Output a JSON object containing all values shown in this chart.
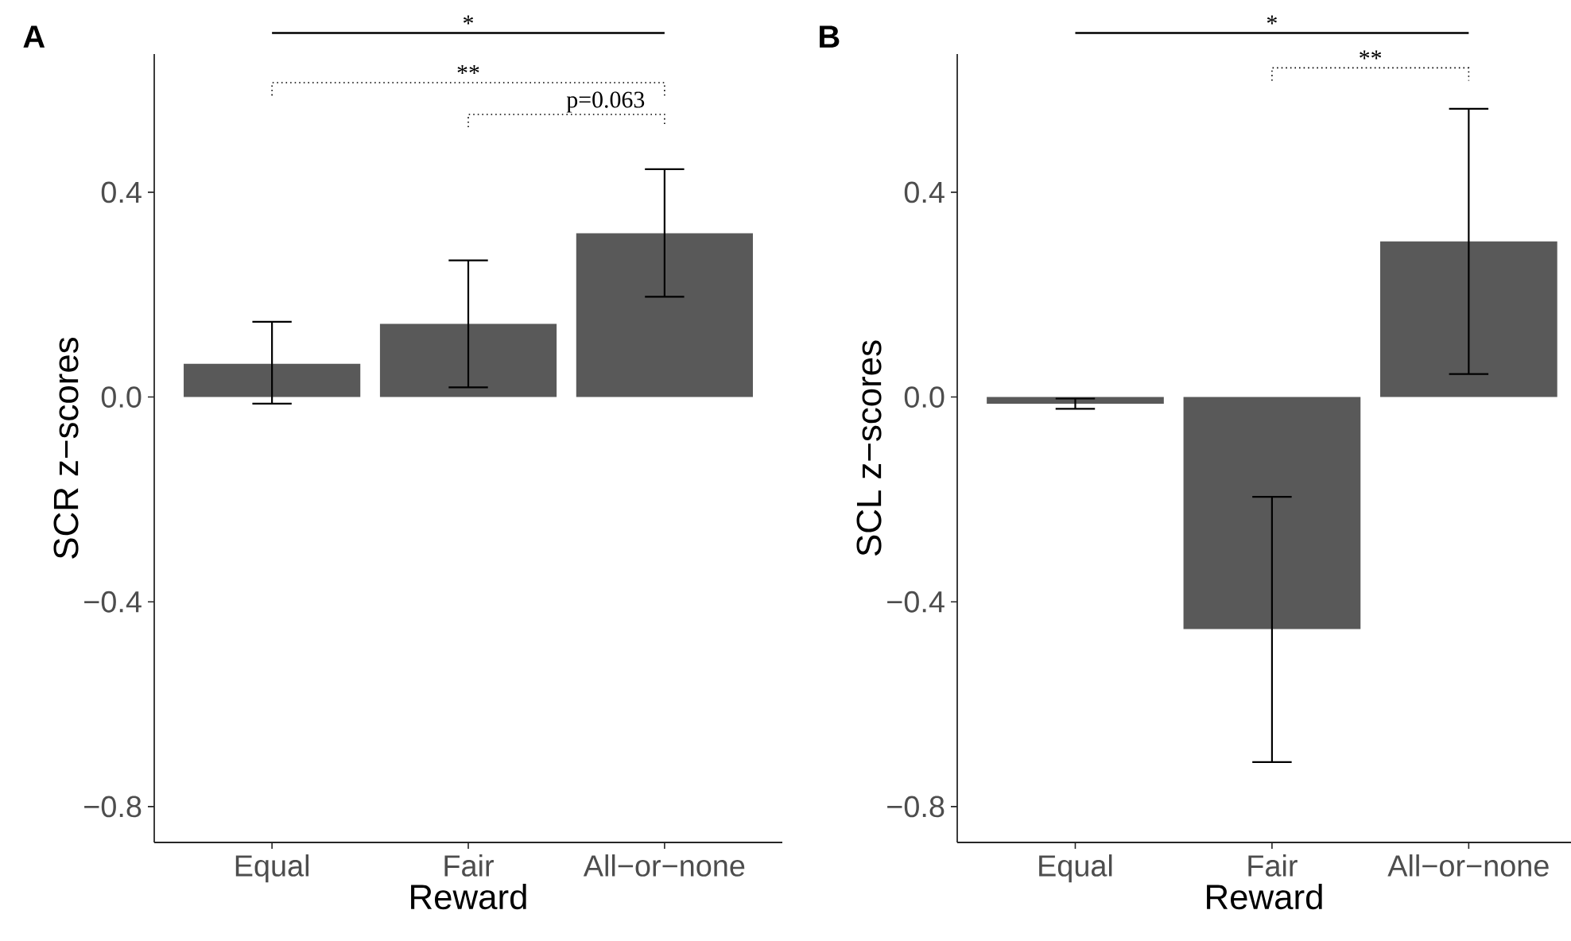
{
  "chart_data": [
    {
      "type": "bar",
      "title": "A",
      "categories": [
        "Equal",
        "Fair",
        "All−or−none"
      ],
      "values": [
        0.065,
        0.143,
        0.32
      ],
      "errors": [
        [
          -0.013,
          0.147
        ],
        [
          0.019,
          0.267
        ],
        [
          0.196,
          0.445
        ]
      ],
      "color": "#595959",
      "xlabel": "Reward",
      "ylabel": "SCR z−scores",
      "ylim": [
        -0.87,
        0.67
      ],
      "yticks": [
        {
          "value": -0.8,
          "label": "−0.8"
        },
        {
          "value": -0.4,
          "label": "−0.4"
        },
        {
          "value": 0.0,
          "label": "0.0"
        },
        {
          "value": 0.4,
          "label": "0.4"
        }
      ],
      "annotations": [
        "*",
        "**",
        "p=0.063"
      ]
    },
    {
      "type": "bar",
      "title": "B",
      "categories": [
        "Equal",
        "Fair",
        "All−or−none"
      ],
      "values": [
        -0.013,
        -0.453,
        0.304
      ],
      "errors": [
        [
          -0.023,
          -0.003
        ],
        [
          -0.713,
          -0.195
        ],
        [
          0.045,
          0.563
        ]
      ],
      "color": "#595959",
      "xlabel": "Reward",
      "ylabel": "SCL z−scores",
      "ylim": [
        -0.87,
        0.67
      ],
      "yticks": [
        {
          "value": -0.8,
          "label": "−0.8"
        },
        {
          "value": -0.4,
          "label": "−0.4"
        },
        {
          "value": 0.0,
          "label": "0.0"
        },
        {
          "value": 0.4,
          "label": "0.4"
        }
      ],
      "annotations": [
        "*",
        "**"
      ]
    }
  ]
}
